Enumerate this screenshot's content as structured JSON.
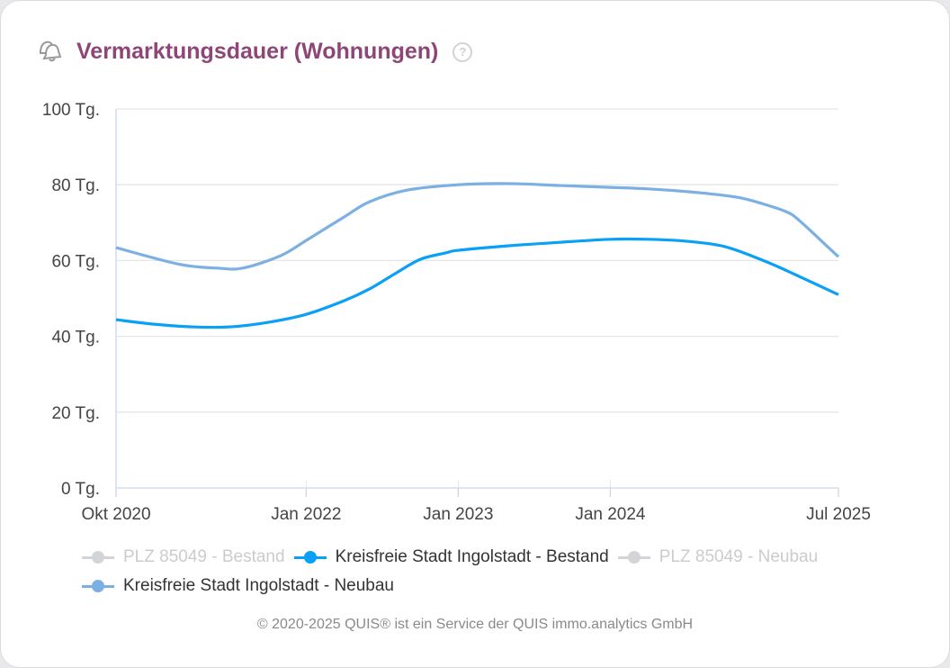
{
  "header": {
    "title": "Vermarktungsdauer (Wohnungen)",
    "icon": "bell-icon",
    "help_icon": "question-circle-icon"
  },
  "chart_data": {
    "type": "line",
    "title": "Vermarktungsdauer (Wohnungen)",
    "xlabel": "",
    "ylabel": "",
    "ylim": [
      0,
      100
    ],
    "xlim": [
      "2020-10",
      "2025-07"
    ],
    "y_ticks": [
      {
        "v": 0,
        "label": "0 Tg."
      },
      {
        "v": 20,
        "label": "20 Tg."
      },
      {
        "v": 40,
        "label": "40 Tg."
      },
      {
        "v": 60,
        "label": "60 Tg."
      },
      {
        "v": 80,
        "label": "80 Tg."
      },
      {
        "v": 100,
        "label": "100 Tg."
      }
    ],
    "x_ticks": [
      {
        "v": "2020-10",
        "label": "Okt 2020"
      },
      {
        "v": "2022-01",
        "label": "Jan 2022"
      },
      {
        "v": "2023-01",
        "label": "Jan 2023"
      },
      {
        "v": "2024-01",
        "label": "Jan 2024"
      },
      {
        "v": "2025-07",
        "label": "Jul 2025"
      }
    ],
    "grid": true,
    "legend_position": "bottom",
    "series": [
      {
        "name": "PLZ 85049 - Bestand",
        "color": "#d3d4d8",
        "hidden": true,
        "points": []
      },
      {
        "name": "Kreisfreie Stadt Ingolstadt - Bestand",
        "color": "#0aa0f5",
        "hidden": false,
        "points": [
          [
            "2020-10",
            44.4
          ],
          [
            "2021-01",
            43.2
          ],
          [
            "2021-04",
            42.5
          ],
          [
            "2021-07",
            42.5
          ],
          [
            "2021-10",
            43.7
          ],
          [
            "2022-01",
            45.8
          ],
          [
            "2022-04",
            49.4
          ],
          [
            "2022-06",
            52.5
          ],
          [
            "2022-08",
            56.5
          ],
          [
            "2022-10",
            60.3
          ],
          [
            "2022-12",
            62
          ],
          [
            "2023-01",
            62.7
          ],
          [
            "2023-05",
            63.9
          ],
          [
            "2023-09",
            64.8
          ],
          [
            "2024-01",
            65.6
          ],
          [
            "2024-04",
            65.6
          ],
          [
            "2024-07",
            65.1
          ],
          [
            "2024-10",
            63.7
          ],
          [
            "2025-01",
            60.1
          ],
          [
            "2025-03",
            57.2
          ],
          [
            "2025-07",
            51
          ]
        ]
      },
      {
        "name": "PLZ 85049 - Neubau",
        "color": "#d3d4d8",
        "hidden": true,
        "points": []
      },
      {
        "name": "Kreisfreie Stadt Ingolstadt - Neubau",
        "color": "#7cb0e3",
        "hidden": false,
        "points": [
          [
            "2020-10",
            63.4
          ],
          [
            "2021-03",
            59
          ],
          [
            "2021-06",
            58
          ],
          [
            "2021-08",
            58
          ],
          [
            "2021-11",
            61.3
          ],
          [
            "2022-01",
            65.3
          ],
          [
            "2022-04",
            71.5
          ],
          [
            "2022-06",
            75.5
          ],
          [
            "2022-09",
            78.6
          ],
          [
            "2023-01",
            80
          ],
          [
            "2023-05",
            80.3
          ],
          [
            "2023-09",
            79.8
          ],
          [
            "2024-01",
            79.3
          ],
          [
            "2024-04",
            78.9
          ],
          [
            "2024-08",
            77.9
          ],
          [
            "2024-11",
            76.7
          ],
          [
            "2025-01",
            75
          ],
          [
            "2025-03",
            72.7
          ],
          [
            "2025-04",
            70.3
          ],
          [
            "2025-06",
            64.1
          ],
          [
            "2025-07",
            61
          ]
        ]
      }
    ]
  },
  "footer": {
    "text": "© 2020-2025 QUIS® ist ein Service der QUIS immo.analytics GmbH"
  }
}
